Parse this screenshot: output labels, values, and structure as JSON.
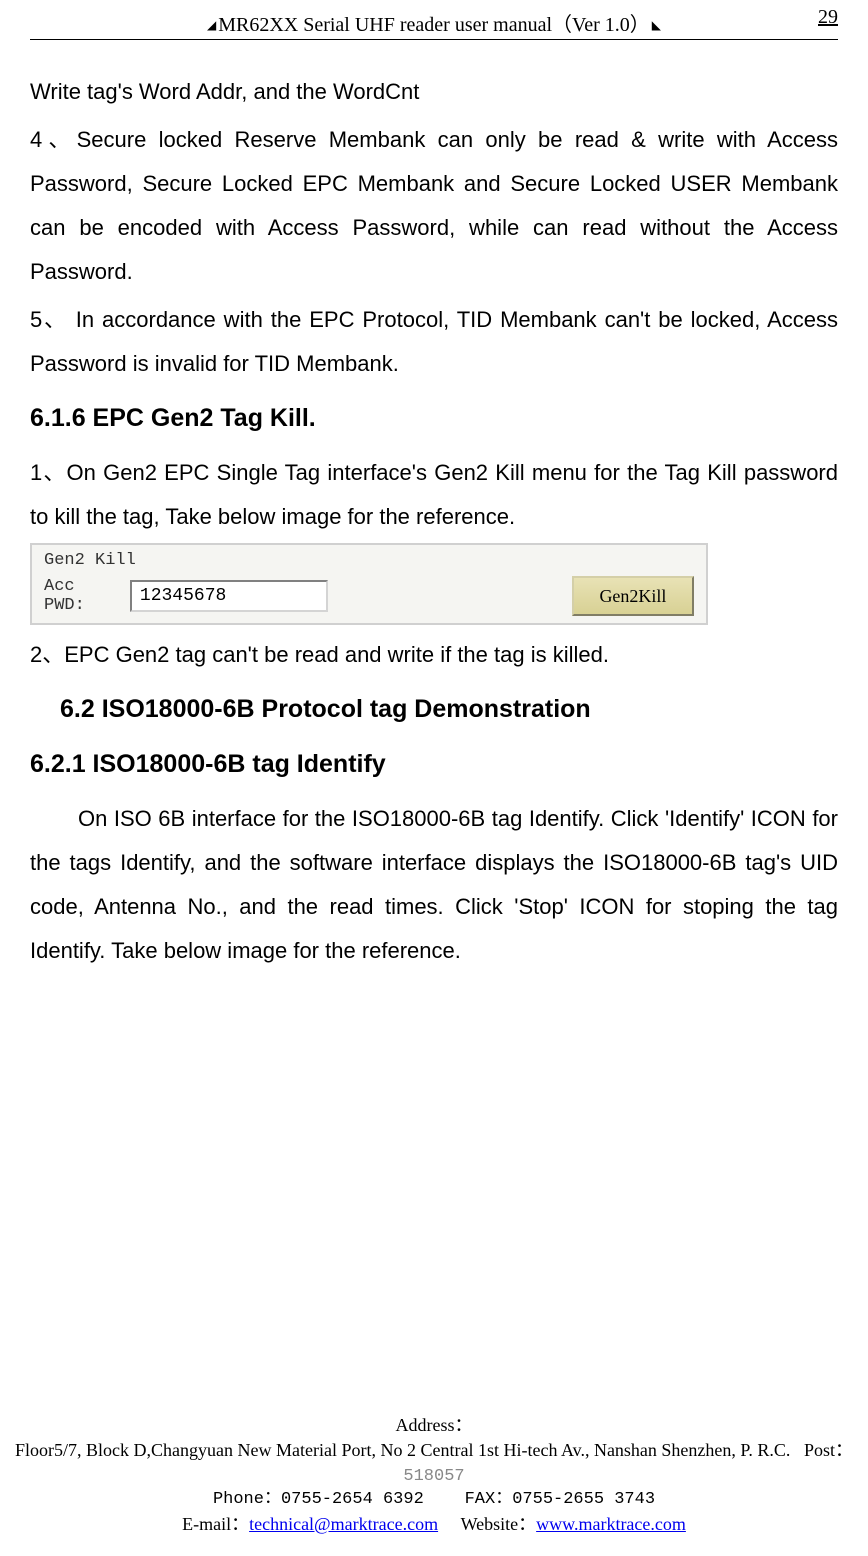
{
  "header": {
    "title": "MR62XX Serial UHF reader user manual（Ver 1.0）",
    "page_number": "29"
  },
  "content": {
    "p1": "Write tag's Word Addr, and the WordCnt",
    "p2": "4、Secure locked Reserve Membank can only be read & write with Access Password, Secure Locked EPC Membank and Secure Locked USER Membank can be encoded with Access Password, while can read without the Access Password.",
    "p3": "5、 In accordance with the EPC Protocol, TID Membank can't be locked, Access Password is invalid for TID Membank.",
    "h1": "6.1.6 EPC Gen2 Tag Kill.",
    "p4": "1、On Gen2 EPC Single Tag interface's Gen2 Kill menu for the Tag Kill password to kill the tag, Take below image for the reference.",
    "p5": "2、EPC Gen2 tag can't be read and write if the tag is killed.",
    "h2": "6.2 ISO18000-6B Protocol tag Demonstration",
    "h3": "6.2.1 ISO18000-6B tag Identify",
    "p6": "On ISO 6B interface for the ISO18000-6B tag Identify. Click 'Identify' ICON for the tags Identify, and the software interface displays the ISO18000-6B tag's UID code, Antenna No., and the read times. Click 'Stop' ICON for stoping the tag Identify. Take below image for the reference."
  },
  "figure": {
    "title": "Gen2 Kill",
    "label": "Acc PWD:",
    "input_value": "12345678",
    "button_label": "Gen2Kill"
  },
  "footer": {
    "addr_label": "Address：",
    "address": "Floor5/7, Block D,Changyuan New  Material Port, No 2 Central 1st Hi-tech Av., Nanshan Shenzhen, P. R.C.",
    "post_label": "Post：",
    "post_value": "518057",
    "phone_label": "Phone：",
    "phone_value": "0755-2654 6392",
    "fax_label": "FAX：",
    "fax_value": "0755-2655 3743",
    "email_label": "E-mail：",
    "email_value": "technical@marktrace.com",
    "website_label": "Website：",
    "website_value": "www.marktrace.com"
  }
}
